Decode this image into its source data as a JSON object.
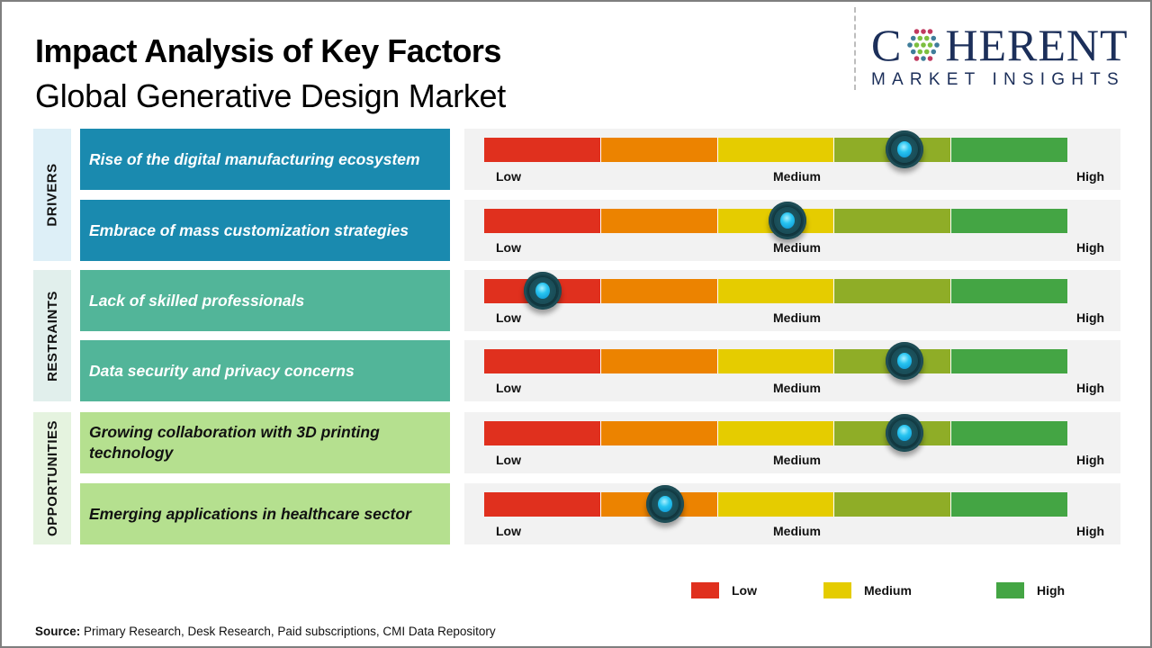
{
  "header": {
    "title": "Impact Analysis of Key Factors",
    "subtitle": "Global Generative Design Market"
  },
  "logo": {
    "brand_prefix": "C",
    "brand_suffix": "HERENT",
    "tagline": "MARKET INSIGHTS",
    "icon": "globe-dots-icon",
    "color": "#1c2f5a"
  },
  "scale": {
    "low_label": "Low",
    "medium_label": "Medium",
    "high_label": "High",
    "segment_colors": [
      "#e0301e",
      "#ec8300",
      "#e5cc00",
      "#8fad27",
      "#44a544"
    ]
  },
  "chart_data": {
    "type": "table",
    "title": "Impact Analysis of Key Factors — Global Generative Design Market",
    "scale_range": [
      "Low",
      "High"
    ],
    "scale_ticks": [
      "Low",
      "Medium",
      "High"
    ],
    "categories": [
      {
        "name": "DRIVERS",
        "label_bg": "#ddeff7",
        "factor_bg": "#1a8aaf",
        "text_color": "#ffffff",
        "factors": [
          {
            "label": "Rise of the digital manufacturing ecosystem",
            "impact": 0.72,
            "impact_level": "Medium-High"
          },
          {
            "label": "Embrace of mass customization strategies",
            "impact": 0.52,
            "impact_level": "Medium"
          }
        ]
      },
      {
        "name": "RESTRAINTS",
        "label_bg": "#e1efec",
        "factor_bg": "#52b599",
        "text_color": "#ffffff",
        "factors": [
          {
            "label": "Lack of skilled professionals",
            "impact": 0.1,
            "impact_level": "Low"
          },
          {
            "label": "Data security and privacy concerns",
            "impact": 0.72,
            "impact_level": "Medium-High"
          }
        ]
      },
      {
        "name": "OPPORTUNITIES",
        "label_bg": "#e5f3df",
        "factor_bg": "#b5e08f",
        "text_color": "#111111",
        "factors": [
          {
            "label": "Growing collaboration with 3D printing technology",
            "impact": 0.72,
            "impact_level": "Medium-High"
          },
          {
            "label": "Emerging applications in healthcare sector",
            "impact": 0.31,
            "impact_level": "Low-Medium"
          }
        ]
      }
    ],
    "legend": [
      {
        "label": "Low",
        "color": "#e0301e"
      },
      {
        "label": "Medium",
        "color": "#e5cc00"
      },
      {
        "label": "High",
        "color": "#44a544"
      }
    ]
  },
  "footer": {
    "source_label": "Source:",
    "source_text": " Primary Research, Desk Research, Paid subscriptions, CMI Data Repository"
  }
}
